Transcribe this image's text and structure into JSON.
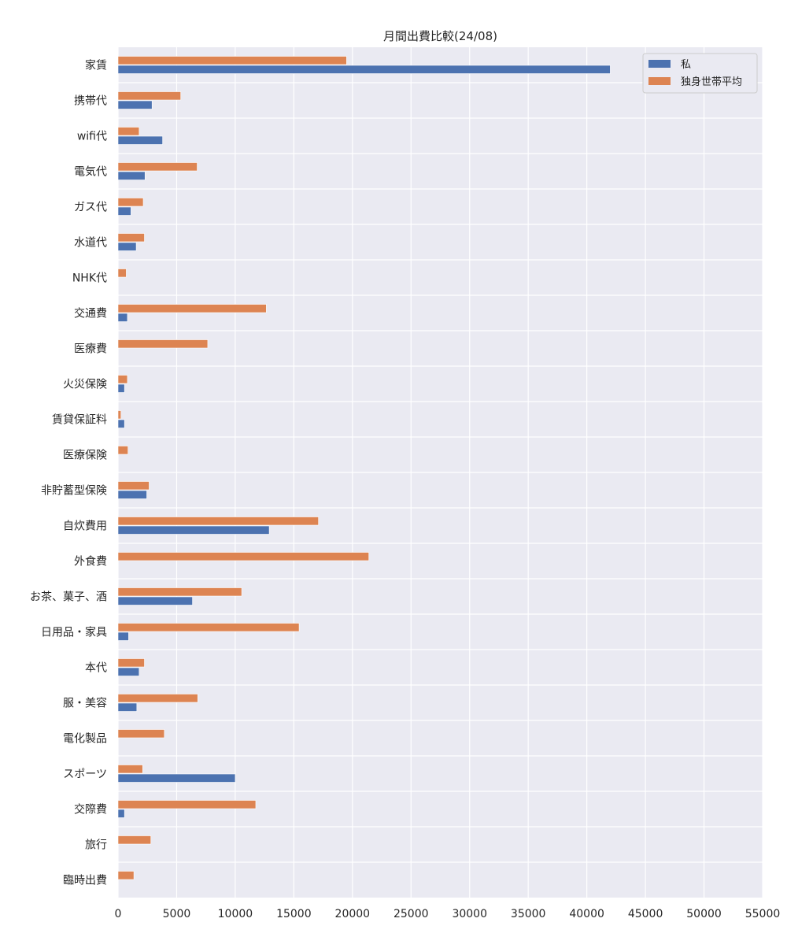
{
  "chart_data": {
    "type": "bar",
    "orientation": "horizontal",
    "title": "月間出費比較(24/08)",
    "xlabel": "",
    "ylabel": "",
    "xlim": [
      0,
      55000
    ],
    "xticks": [
      0,
      5000,
      10000,
      15000,
      20000,
      25000,
      30000,
      35000,
      40000,
      45000,
      50000,
      55000
    ],
    "grid": true,
    "legend_position": "top-right",
    "categories": [
      "家賃",
      "携帯代",
      "wifi代",
      "電気代",
      "ガス代",
      "水道代",
      "NHK代",
      "交通費",
      "医療費",
      "火災保険",
      "賃貸保証料",
      "医療保険",
      "非貯蓄型保険",
      "自炊費用",
      "外食費",
      "お茶、菓子、酒",
      "日用品・家具",
      "本代",
      "服・美容",
      "電化製品",
      "スポーツ",
      "交際費",
      "旅行",
      "臨時出費"
    ],
    "series": [
      {
        "name": "私",
        "color": "#4c72b0",
        "values": [
          42000,
          2900,
          3800,
          2300,
          1100,
          1550,
          0,
          800,
          0,
          550,
          550,
          0,
          2450,
          12900,
          0,
          6350,
          900,
          1800,
          1600,
          0,
          10000,
          550,
          0,
          0
        ]
      },
      {
        "name": "独身世帯平均",
        "color": "#dd8452",
        "values": [
          19500,
          5350,
          1800,
          6750,
          2150,
          2250,
          700,
          12650,
          7650,
          800,
          250,
          850,
          2650,
          17100,
          21400,
          10550,
          15450,
          2250,
          6800,
          3950,
          2100,
          11750,
          2800,
          1350
        ]
      }
    ]
  }
}
